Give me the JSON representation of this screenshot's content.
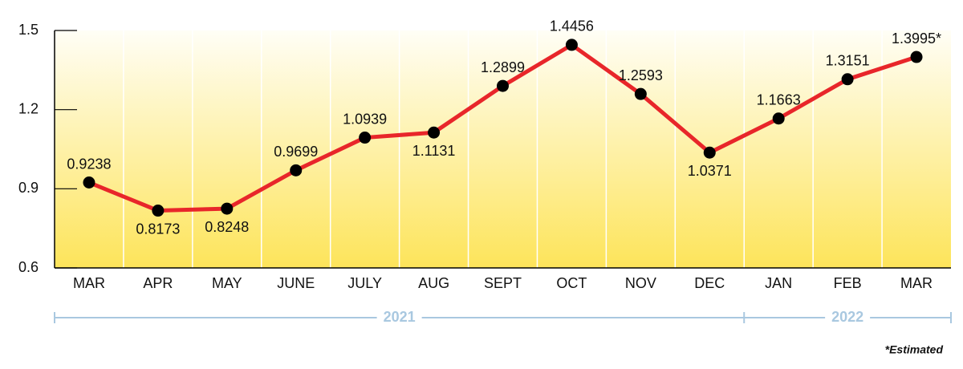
{
  "chart_data": {
    "type": "line",
    "categories": [
      "MAR",
      "APR",
      "MAY",
      "JUNE",
      "JULY",
      "AUG",
      "SEPT",
      "OCT",
      "NOV",
      "DEC",
      "JAN",
      "FEB",
      "MAR"
    ],
    "values": [
      0.9238,
      0.8173,
      0.8248,
      0.9699,
      1.0939,
      1.1131,
      1.2899,
      1.4456,
      1.2593,
      1.0371,
      1.1663,
      1.3151,
      1.3995
    ],
    "value_labels": [
      "0.9238",
      "0.8173",
      "0.8248",
      "0.9699",
      "1.0939",
      "1.1131",
      "1.2899",
      "1.4456",
      "1.2593",
      "1.0371",
      "1.1663",
      "1.3151",
      "1.3995*"
    ],
    "color": "#e8262a",
    "marker_color": "#000000",
    "ylim": [
      0.6,
      1.5
    ],
    "yticks": [
      0.6,
      0.9,
      1.2,
      1.5
    ],
    "grid": true,
    "x_groups": [
      {
        "label": "2021",
        "count": 10
      },
      {
        "label": "2022",
        "count": 3
      }
    ],
    "footnote": "*Estimated"
  }
}
